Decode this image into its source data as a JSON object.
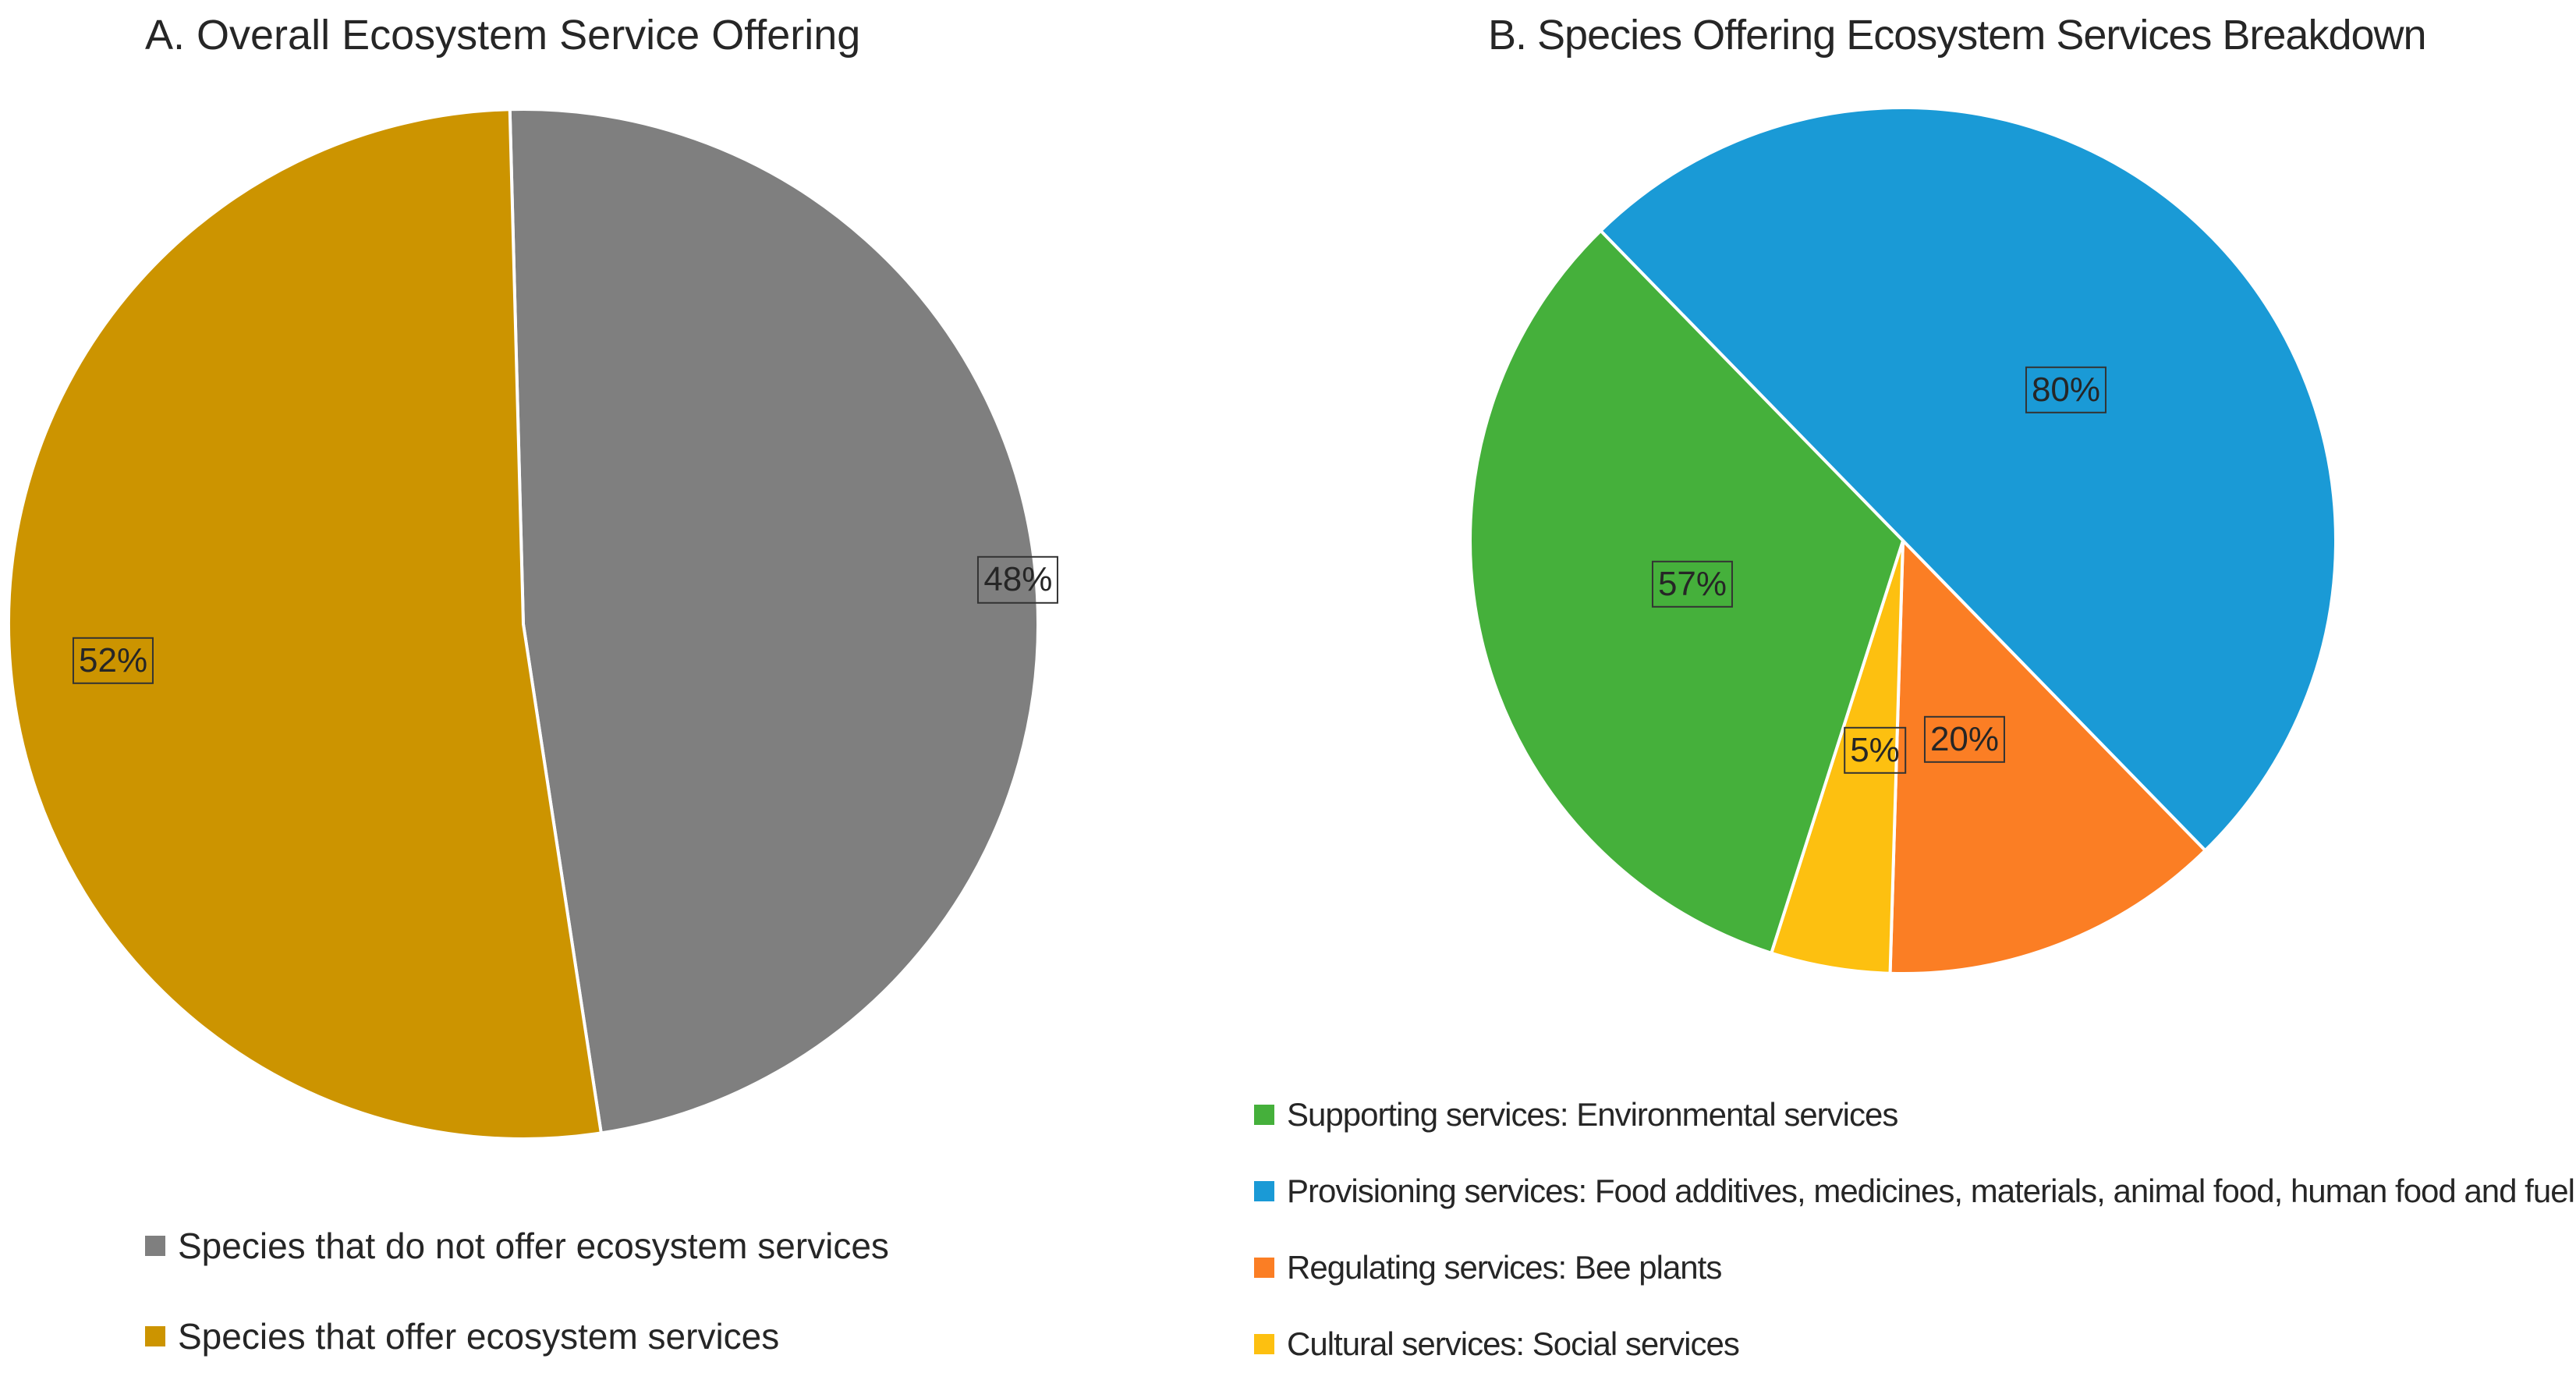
{
  "chart_data": [
    {
      "type": "pie",
      "title": "A. Overall Ecosystem Service Offering",
      "slices": [
        {
          "name": "Species that do not offer ecosystem services",
          "value": 48,
          "label": "48%",
          "color": "#7f7f7f"
        },
        {
          "name": "Species that offer ecosystem services",
          "value": 52,
          "label": "52%",
          "color": "#cc9400"
        }
      ],
      "legend_position": "bottom-left"
    },
    {
      "type": "pie",
      "title": "B. Species Offering Ecosystem Services Breakdown",
      "slices": [
        {
          "name": "Provisioning services: Food additives, medicines, materials, animal food, human food and fuel",
          "value": 80,
          "label": "80%",
          "color": "#1a9ad6"
        },
        {
          "name": "Regulating services: Bee plants",
          "value": 20,
          "label": "20%",
          "color": "#fb7e24"
        },
        {
          "name": "Cultural services: Social services",
          "value": 5,
          "label": "5%",
          "color": "#fdc010"
        },
        {
          "name": "Supporting services: Environmental services",
          "value": 57,
          "label": "57%",
          "color": "#45b03b"
        }
      ],
      "legend": [
        {
          "name": "Supporting services: Environmental services",
          "color": "#45b03b"
        },
        {
          "name": "Provisioning services: Food additives, medicines, materials, animal food, human food and fuel",
          "color": "#1a9ad6"
        },
        {
          "name": "Regulating services: Bee plants",
          "color": "#fb7e24"
        },
        {
          "name": "Cultural services: Social services",
          "color": "#fdc010"
        }
      ],
      "legend_position": "bottom"
    }
  ]
}
